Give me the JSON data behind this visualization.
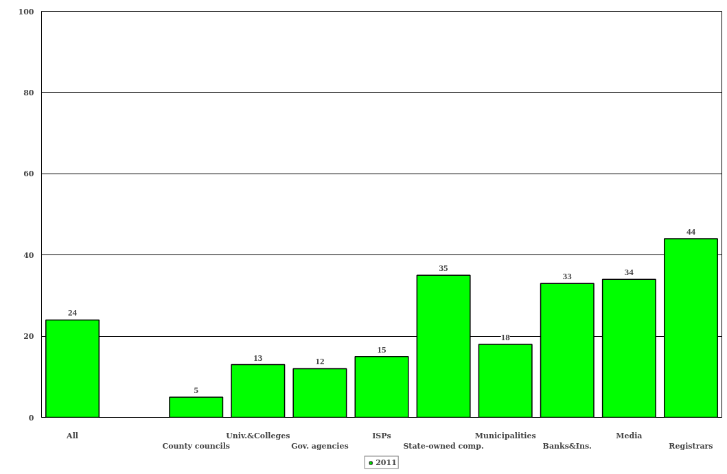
{
  "chart_data": {
    "type": "bar",
    "categories": [
      "All",
      null,
      "County councils",
      "Univ.&Colleges",
      "Gov. agencies",
      "ISPs",
      "State-owned comp.",
      "Municipalities",
      "Banks&Ins.",
      "Media",
      "Registrars"
    ],
    "series": [
      {
        "name": "2011",
        "color": "#00ff00",
        "values": [
          24,
          null,
          5,
          13,
          12,
          15,
          35,
          18,
          33,
          34,
          44
        ]
      }
    ],
    "ylim": [
      0,
      100
    ],
    "yticks": [
      0,
      20,
      40,
      60,
      80,
      100
    ],
    "grid": "y",
    "legend": "bottom",
    "data_labels": true
  }
}
